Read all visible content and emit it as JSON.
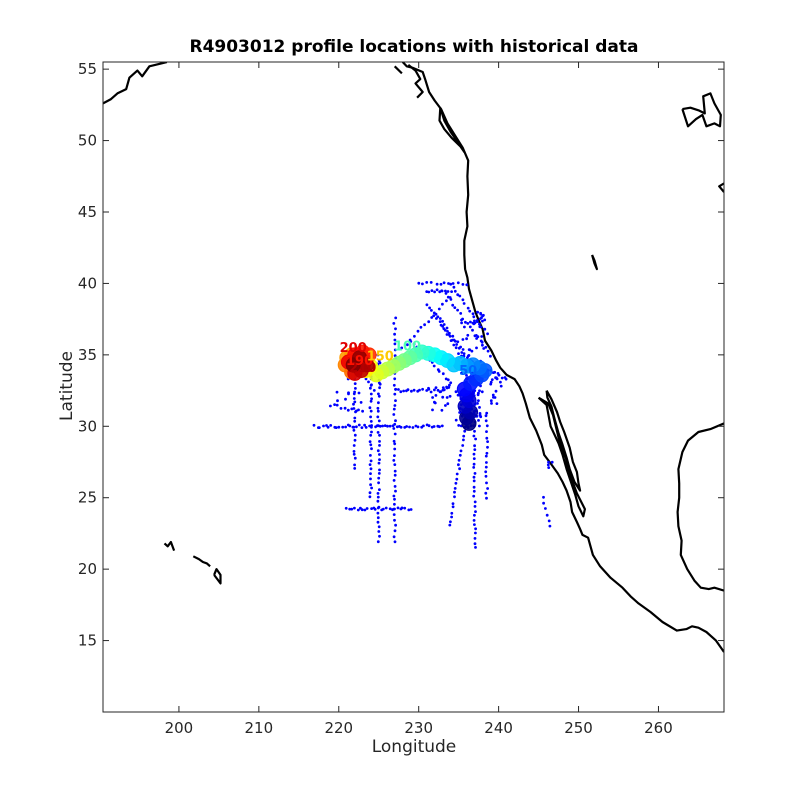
{
  "chart_data": {
    "type": "scatter",
    "title": "R4903012 profile locations with historical data",
    "xlabel": "Longitude",
    "ylabel": "Latitude",
    "xlim": [
      190.5,
      268.2
    ],
    "ylim": [
      10,
      55.5
    ],
    "xticks": [
      200,
      210,
      220,
      230,
      240,
      250,
      260
    ],
    "yticks": [
      15,
      20,
      25,
      30,
      35,
      40,
      45,
      50,
      55
    ],
    "grid": false,
    "colors": {
      "historical": "#0000ff",
      "coast": "#000000",
      "frame": "#262626"
    },
    "colormap": "jet",
    "historical_points": {
      "lines": [
        {
          "from": [
            217,
            30
          ],
          "to": [
            233,
            30
          ],
          "count": 48
        },
        {
          "from": [
            225,
            35
          ],
          "to": [
            225,
            22
          ],
          "count": 40
        },
        {
          "from": [
            227,
            37.5
          ],
          "to": [
            227,
            22
          ],
          "count": 45
        },
        {
          "from": [
            222,
            34
          ],
          "to": [
            222,
            27
          ],
          "count": 22
        },
        {
          "from": [
            224,
            34
          ],
          "to": [
            224,
            25
          ],
          "count": 28
        },
        {
          "from": [
            237,
            31
          ],
          "to": [
            237,
            21.5
          ],
          "count": 30
        },
        {
          "from": [
            236,
            31
          ],
          "to": [
            234,
            23
          ],
          "count": 25
        },
        {
          "from": [
            238.5,
            31
          ],
          "to": [
            238.5,
            25
          ],
          "count": 18
        },
        {
          "from": [
            221,
            24.2
          ],
          "to": [
            229,
            24.2
          ],
          "count": 25
        },
        {
          "from": [
            229,
            36
          ],
          "to": [
            234,
            33
          ],
          "count": 16
        },
        {
          "from": [
            227,
            32.5
          ],
          "to": [
            233,
            32.5
          ],
          "count": 18
        },
        {
          "from": [
            228,
            35.5
          ],
          "to": [
            234,
            39
          ],
          "count": 14
        },
        {
          "from": [
            231,
            39.5
          ],
          "to": [
            234,
            39.5
          ],
          "count": 10
        },
        {
          "from": [
            230,
            40
          ],
          "to": [
            236,
            40
          ],
          "count": 12
        },
        {
          "from": [
            232,
            38
          ],
          "to": [
            238,
            33.5
          ],
          "count": 20
        },
        {
          "from": [
            233,
            39.5
          ],
          "to": [
            239,
            35
          ],
          "count": 20
        },
        {
          "from": [
            231,
            38.5
          ],
          "to": [
            237,
            34
          ],
          "count": 20
        },
        {
          "from": [
            234,
            40
          ],
          "to": [
            238.5,
            36.5
          ],
          "count": 16
        },
        {
          "from": [
            233,
            37
          ],
          "to": [
            238,
            32.5
          ],
          "count": 18
        },
        {
          "from": [
            219,
            31.5
          ],
          "to": [
            223,
            31
          ],
          "count": 10
        },
        {
          "from": [
            245.5,
            25
          ],
          "to": [
            246.5,
            23
          ],
          "count": 6
        },
        {
          "from": [
            238.5,
            34
          ],
          "to": [
            241,
            33.3
          ],
          "count": 10
        }
      ],
      "clusters": [
        {
          "center": [
            236.2,
            31.2
          ],
          "spread": [
            1.6,
            1.3
          ],
          "count": 60
        },
        {
          "center": [
            236.8,
            35.5
          ],
          "spread": [
            1.5,
            2.5
          ],
          "count": 50
        },
        {
          "center": [
            232.5,
            32.0
          ],
          "spread": [
            1.5,
            1.0
          ],
          "count": 20
        },
        {
          "center": [
            239.5,
            32.5
          ],
          "spread": [
            1.0,
            1.0
          ],
          "count": 15
        },
        {
          "center": [
            246.5,
            27.2
          ],
          "spread": [
            0.3,
            0.3
          ],
          "count": 4
        },
        {
          "center": [
            222.5,
            33.5
          ],
          "spread": [
            3.0,
            2.0
          ],
          "count": 25
        }
      ]
    },
    "profile_track": [
      [
        236.3,
        30.2
      ],
      [
        236.0,
        30.6
      ],
      [
        236.5,
        31.0
      ],
      [
        235.8,
        31.4
      ],
      [
        236.3,
        31.8
      ],
      [
        236.0,
        32.2
      ],
      [
        235.7,
        32.6
      ],
      [
        236.5,
        33.0
      ],
      [
        237.2,
        33.3
      ],
      [
        237.9,
        33.6
      ],
      [
        238.3,
        33.9
      ],
      [
        237.6,
        34.1
      ],
      [
        236.8,
        34.3
      ],
      [
        236.0,
        34.2
      ],
      [
        235.2,
        34.4
      ],
      [
        234.4,
        34.3
      ],
      [
        233.6,
        34.6
      ],
      [
        232.8,
        34.8
      ],
      [
        232.0,
        35.0
      ],
      [
        231.2,
        35.1
      ],
      [
        230.4,
        35.2
      ],
      [
        229.6,
        35.0
      ],
      [
        228.9,
        34.8
      ],
      [
        228.2,
        34.6
      ],
      [
        227.5,
        34.4
      ],
      [
        226.8,
        34.2
      ],
      [
        226.1,
        34.0
      ],
      [
        225.4,
        33.8
      ],
      [
        224.7,
        33.6
      ],
      [
        224.0,
        34.2
      ],
      [
        223.4,
        33.9
      ],
      [
        222.8,
        34.3
      ],
      [
        222.2,
        34.6
      ],
      [
        221.6,
        35.0
      ],
      [
        221.0,
        34.8
      ],
      [
        220.8,
        34.3
      ],
      [
        221.6,
        33.8
      ],
      [
        222.4,
        34.1
      ],
      [
        223.2,
        34.5
      ],
      [
        223.8,
        35.0
      ],
      [
        223.0,
        35.2
      ],
      [
        222.0,
        35.0
      ],
      [
        221.2,
        34.5
      ],
      [
        222.0,
        33.7
      ],
      [
        222.8,
        33.9
      ],
      [
        223.5,
        34.3
      ],
      [
        222.6,
        34.8
      ],
      [
        221.8,
        34.3
      ]
    ],
    "profile_labels": [
      {
        "text": "210",
        "lon": 223.0,
        "lat": 33.8
      },
      {
        "text": "200",
        "lon": 221.8,
        "lat": 35.2
      },
      {
        "text": "190",
        "lon": 222.6,
        "lat": 34.3
      },
      {
        "text": "150",
        "lon": 225.2,
        "lat": 34.6
      },
      {
        "text": "100",
        "lon": 228.6,
        "lat": 35.3
      },
      {
        "text": "50",
        "lon": 236.2,
        "lat": 33.6
      }
    ],
    "coastlines": [
      [
        [
          190.5,
          52.6
        ],
        [
          191.5,
          52.9
        ],
        [
          192.3,
          53.3
        ],
        [
          193.4,
          53.6
        ],
        [
          193.8,
          54.4
        ],
        [
          194.8,
          54.9
        ],
        [
          195.4,
          54.5
        ],
        [
          196.3,
          55.2
        ],
        [
          197.8,
          55.4
        ],
        [
          198.5,
          55.5
        ]
      ],
      [
        [
          228,
          55.5
        ],
        [
          228.5,
          55.2
        ],
        [
          229.2,
          55.1
        ],
        [
          230.5,
          54.8
        ],
        [
          230.8,
          54.3
        ],
        [
          231.3,
          53.4
        ],
        [
          232.0,
          52.8
        ],
        [
          232.8,
          52.2
        ],
        [
          233.6,
          51.2
        ],
        [
          234.5,
          50.4
        ],
        [
          235.5,
          49.5
        ],
        [
          236.2,
          48.6
        ],
        [
          236.1,
          47.5
        ],
        [
          236.2,
          46.2
        ],
        [
          236.0,
          45.0
        ],
        [
          236.1,
          44.0
        ],
        [
          235.7,
          43.0
        ],
        [
          235.7,
          42.0
        ],
        [
          235.8,
          41.0
        ],
        [
          236.1,
          40.4
        ],
        [
          236.3,
          39.6
        ],
        [
          236.7,
          38.8
        ],
        [
          237.1,
          38.0
        ],
        [
          237.6,
          37.3
        ],
        [
          238.0,
          36.8
        ],
        [
          238.3,
          36.0
        ],
        [
          239.1,
          35.3
        ],
        [
          239.7,
          34.6
        ],
        [
          240.2,
          34.1
        ],
        [
          241.0,
          33.6
        ],
        [
          242.0,
          33.3
        ],
        [
          242.6,
          32.8
        ],
        [
          243.0,
          32.3
        ],
        [
          243.4,
          31.6
        ],
        [
          243.9,
          30.6
        ],
        [
          244.7,
          29.7
        ],
        [
          245.4,
          28.7
        ],
        [
          245.7,
          28.0
        ],
        [
          246.5,
          27.4
        ],
        [
          247.4,
          26.7
        ],
        [
          248.0,
          26.1
        ],
        [
          248.5,
          25.5
        ],
        [
          249.0,
          24.7
        ],
        [
          249.2,
          24.0
        ],
        [
          249.8,
          23.3
        ],
        [
          250.2,
          22.8
        ],
        [
          250.5,
          22.4
        ],
        [
          251.2,
          22.2
        ],
        [
          251.8,
          21.0
        ],
        [
          252.7,
          20.2
        ],
        [
          254.0,
          19.4
        ],
        [
          255.5,
          18.7
        ],
        [
          256.5,
          18.1
        ],
        [
          257.5,
          17.6
        ],
        [
          259.0,
          17.0
        ],
        [
          260.5,
          16.3
        ],
        [
          262.3,
          15.7
        ],
        [
          263.5,
          15.8
        ],
        [
          264.2,
          16.0
        ],
        [
          265.0,
          15.9
        ],
        [
          266.0,
          15.6
        ],
        [
          267.2,
          15.0
        ],
        [
          268.2,
          14.2
        ]
      ],
      [
        [
          232.7,
          52.3
        ],
        [
          233.2,
          51.4
        ],
        [
          234.0,
          50.6
        ],
        [
          235.0,
          49.8
        ],
        [
          235.7,
          49.2
        ],
        [
          235.2,
          49.6
        ],
        [
          234.1,
          50.2
        ],
        [
          233.2,
          50.8
        ],
        [
          232.6,
          51.4
        ],
        [
          232.7,
          52.3
        ]
      ],
      [
        [
          246,
          32.5
        ],
        [
          246.6,
          31.9
        ],
        [
          247.3,
          31.0
        ],
        [
          247.7,
          30.3
        ],
        [
          248.2,
          29.6
        ],
        [
          248.9,
          28.5
        ],
        [
          249.3,
          27.5
        ],
        [
          249.8,
          26.8
        ],
        [
          250.0,
          26.0
        ],
        [
          250.2,
          25.5
        ],
        [
          249.5,
          26.1
        ],
        [
          248.9,
          27.0
        ],
        [
          248.5,
          27.8
        ],
        [
          248.0,
          28.7
        ],
        [
          247.5,
          29.5
        ],
        [
          247.0,
          30.5
        ],
        [
          246.6,
          31.4
        ],
        [
          246.1,
          32.0
        ],
        [
          246.0,
          32.5
        ]
      ],
      [
        [
          245,
          32.0
        ],
        [
          246.0,
          31.5
        ],
        [
          246.5,
          30.0
        ],
        [
          247.5,
          28.8
        ],
        [
          248.0,
          28.0
        ],
        [
          248.5,
          27.0
        ],
        [
          249.0,
          26.2
        ],
        [
          249.6,
          25.2
        ],
        [
          250.0,
          24.4
        ],
        [
          250.6,
          23.7
        ],
        [
          250.8,
          24.2
        ],
        [
          249.8,
          25.3
        ],
        [
          249.0,
          26.5
        ],
        [
          248.4,
          27.8
        ],
        [
          247.5,
          29.2
        ],
        [
          246.8,
          30.8
        ],
        [
          246.2,
          31.6
        ],
        [
          245,
          32.0
        ]
      ],
      [
        [
          268.2,
          30.2
        ],
        [
          266.5,
          29.8
        ],
        [
          265.0,
          29.6
        ],
        [
          263.7,
          29.0
        ],
        [
          263.0,
          28.2
        ],
        [
          262.5,
          27.0
        ],
        [
          262.6,
          26.0
        ],
        [
          262.6,
          25.0
        ],
        [
          262.4,
          24.0
        ],
        [
          262.5,
          23.0
        ],
        [
          262.9,
          22.0
        ],
        [
          262.8,
          21.0
        ],
        [
          263.6,
          20.0
        ],
        [
          264.5,
          19.2
        ],
        [
          265.3,
          18.7
        ],
        [
          266.3,
          18.6
        ],
        [
          267.0,
          18.7
        ],
        [
          268.2,
          18.5
        ]
      ],
      [
        [
          263,
          52.2
        ],
        [
          264.0,
          52.3
        ],
        [
          265.1,
          52.1
        ],
        [
          265.8,
          51.9
        ],
        [
          265.6,
          53.1
        ],
        [
          266.5,
          53.3
        ],
        [
          267.0,
          52.6
        ],
        [
          267.8,
          51.8
        ],
        [
          267.7,
          51.0
        ],
        [
          267.0,
          51.2
        ],
        [
          266.0,
          51.0
        ],
        [
          265.5,
          51.8
        ],
        [
          264.7,
          51.5
        ],
        [
          263.7,
          51.0
        ],
        [
          263.0,
          52.2
        ]
      ],
      [
        [
          268.2,
          46.4
        ],
        [
          267.6,
          46.8
        ],
        [
          268.2,
          47.0
        ]
      ],
      [
        [
          251.7,
          42.0
        ],
        [
          252.0,
          41.4
        ],
        [
          252.3,
          41.0
        ],
        [
          252.0,
          41.6
        ],
        [
          251.7,
          42.0
        ]
      ],
      [
        [
          198.2,
          21.8
        ],
        [
          198.6,
          21.6
        ],
        [
          199.0,
          21.9
        ],
        [
          199.4,
          21.3
        ]
      ],
      [
        [
          201.8,
          20.9
        ],
        [
          202.5,
          20.7
        ],
        [
          203.0,
          20.5
        ],
        [
          203.5,
          20.4
        ],
        [
          203.9,
          20.2
        ]
      ],
      [
        [
          204.4,
          19.6
        ],
        [
          205.2,
          19.0
        ],
        [
          205.2,
          19.6
        ],
        [
          204.7,
          20.0
        ],
        [
          204.4,
          19.6
        ]
      ],
      [
        [
          228.7,
          55.3
        ],
        [
          229.6,
          54.9
        ],
        [
          230.2,
          54.3
        ],
        [
          229.6,
          54.0
        ],
        [
          230.5,
          53.4
        ],
        [
          229.8,
          53.0
        ]
      ],
      [
        [
          227.0,
          55.2
        ],
        [
          227.9,
          54.7
        ]
      ]
    ]
  }
}
